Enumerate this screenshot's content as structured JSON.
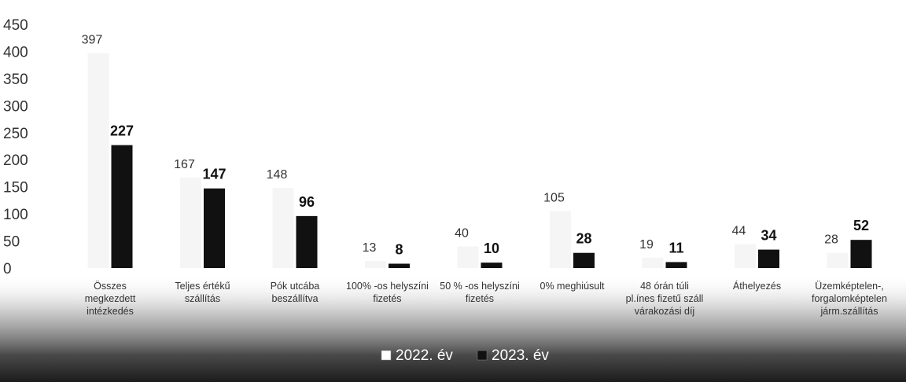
{
  "chart_data": {
    "type": "bar",
    "title": "",
    "xlabel": "",
    "ylabel": "",
    "ylim": [
      0,
      450
    ],
    "yticks": [
      0,
      50,
      100,
      150,
      200,
      250,
      300,
      350,
      400,
      450
    ],
    "grid": false,
    "legend_position": "bottom",
    "categories": [
      [
        "Összes",
        "megkezdett",
        "intézkedés"
      ],
      [
        "Teljes értékű",
        "szállítás"
      ],
      [
        "Pók utcába",
        "beszállítva"
      ],
      [
        "100% -os helyszíni",
        "fizetés"
      ],
      [
        "50 % -os helyszíni",
        "fizetés"
      ],
      [
        "0% meghiúsult"
      ],
      [
        "48 órán túli",
        "pl.ínes fizetű száll",
        "várakozási díj"
      ],
      [
        "Áthelyezés"
      ],
      [
        "Üzemképtelen-,",
        "forgalomképtelen",
        "járm.szállítás"
      ]
    ],
    "series": [
      {
        "name": "2022. év",
        "color": "#ededed",
        "values": [
          397,
          167,
          148,
          13,
          40,
          105,
          19,
          44,
          28
        ],
        "labels": [
          "397",
          "167",
          "148",
          "13",
          "40",
          "105",
          "19",
          "44",
          "28"
        ]
      },
      {
        "name": "2023. év",
        "color": "#111111",
        "values": [
          227,
          147,
          96,
          8,
          10,
          28,
          11,
          34,
          52
        ],
        "labels": [
          "227",
          "147",
          "96",
          "8",
          "10",
          "28",
          "11",
          "34",
          "52"
        ]
      }
    ]
  },
  "legend": {
    "items": [
      {
        "label": "2022. év",
        "color": "#ffffff"
      },
      {
        "label": "2023. év",
        "color": "#111111"
      }
    ]
  }
}
